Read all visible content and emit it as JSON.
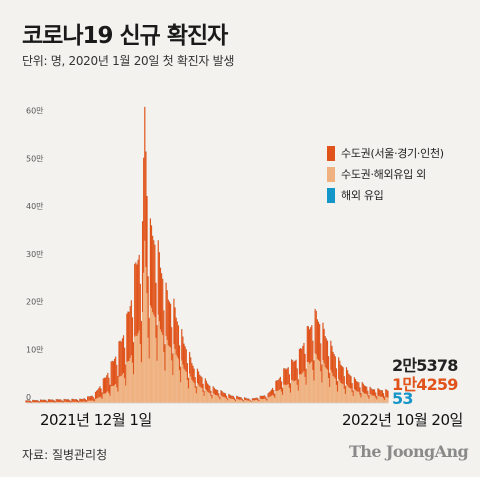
{
  "header": {
    "title": "코로나19 신규 확진자",
    "subtitle": "단위: 명, 2020년 1월 20일 첫 확진자 발생"
  },
  "chart_data": {
    "type": "area",
    "stacked": true,
    "ylim": [
      0,
      620000
    ],
    "yticks": [
      {
        "value": 0,
        "label": "0"
      },
      {
        "value": 100000,
        "label": "10만"
      },
      {
        "value": 200000,
        "label": "20만"
      },
      {
        "value": 300000,
        "label": "30만"
      },
      {
        "value": 400000,
        "label": "40만"
      },
      {
        "value": 500000,
        "label": "50만"
      },
      {
        "value": 600000,
        "label": "60만"
      }
    ],
    "x_labels": {
      "start": "2021년 12월 1일",
      "end": "2022년 10월 20일"
    },
    "grid": false,
    "legend_position": "right",
    "series": [
      {
        "name": "수도권(서울·경기·인천)",
        "color": "#e0531a"
      },
      {
        "name": "수도권·해외유입 외",
        "color": "#efb17f"
      },
      {
        "name": "해외 유입",
        "color": "#1596c9"
      }
    ],
    "anchors": [
      {
        "date": "2021-12-01",
        "metro": 3800,
        "other": 1300
      },
      {
        "date": "2021-12-20",
        "metro": 5000,
        "other": 2000
      },
      {
        "date": "2022-01-20",
        "metro": 5500,
        "other": 2600
      },
      {
        "date": "2022-01-31",
        "metro": 11000,
        "other": 6000
      },
      {
        "date": "2022-02-10",
        "metro": 33000,
        "other": 20000
      },
      {
        "date": "2022-02-20",
        "metro": 60000,
        "other": 42000
      },
      {
        "date": "2022-02-28",
        "metro": 85000,
        "other": 70000
      },
      {
        "date": "2022-03-05",
        "metro": 115000,
        "other": 100000
      },
      {
        "date": "2022-03-10",
        "metro": 150000,
        "other": 140000
      },
      {
        "date": "2022-03-15",
        "metro": 170000,
        "other": 170000
      },
      {
        "date": "2022-03-17",
        "metro": 280000,
        "other": 340000
      },
      {
        "date": "2022-03-20",
        "metro": 165000,
        "other": 175000
      },
      {
        "date": "2022-03-24",
        "metro": 160000,
        "other": 190000
      },
      {
        "date": "2022-03-30",
        "metro": 135000,
        "other": 160000
      },
      {
        "date": "2022-04-05",
        "metro": 100000,
        "other": 125000
      },
      {
        "date": "2022-04-12",
        "metro": 85000,
        "other": 110000
      },
      {
        "date": "2022-04-20",
        "metro": 55000,
        "other": 75000
      },
      {
        "date": "2022-04-30",
        "metro": 30000,
        "other": 42000
      },
      {
        "date": "2022-05-15",
        "metro": 14000,
        "other": 19000
      },
      {
        "date": "2022-06-01",
        "metro": 7000,
        "other": 9000
      },
      {
        "date": "2022-06-20",
        "metro": 3500,
        "other": 4500
      },
      {
        "date": "2022-07-05",
        "metro": 8000,
        "other": 10000
      },
      {
        "date": "2022-07-20",
        "metro": 32000,
        "other": 36000
      },
      {
        "date": "2022-08-01",
        "metro": 45000,
        "other": 50000
      },
      {
        "date": "2022-08-10",
        "metro": 70000,
        "other": 80000
      },
      {
        "date": "2022-08-17",
        "metro": 85000,
        "other": 95000
      },
      {
        "date": "2022-08-25",
        "metro": 65000,
        "other": 75000
      },
      {
        "date": "2022-09-05",
        "metro": 42000,
        "other": 46000
      },
      {
        "date": "2022-09-20",
        "metro": 22000,
        "other": 26000
      },
      {
        "date": "2022-10-05",
        "metro": 13000,
        "other": 16000
      },
      {
        "date": "2022-10-20",
        "metro": 14259,
        "other": 11066
      }
    ],
    "overseas_approx": 300,
    "latest": {
      "total": "2만5378",
      "metro": "1만4259",
      "overseas": "53"
    }
  },
  "footer": {
    "source": "자료: 질병관리청",
    "logo": "The JoongAng"
  }
}
